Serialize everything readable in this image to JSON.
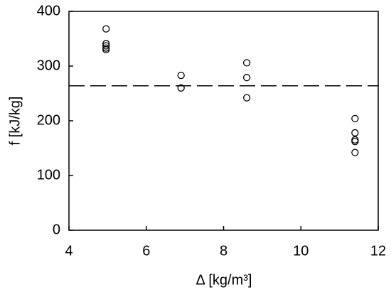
{
  "chart_data": {
    "type": "scatter",
    "xlabel": "Δ [kg/m³]",
    "ylabel": "f [kJ/kg]",
    "series": [
      {
        "color": "#000000",
        "x": [
          4.96,
          4.96,
          4.96,
          4.96,
          4.96,
          6.9,
          6.9,
          8.6,
          8.6,
          8.6,
          11.4,
          11.4,
          11.4,
          11.4,
          11.4
        ],
        "values": [
          368,
          341,
          337,
          333,
          330,
          283,
          260,
          306,
          279,
          242,
          204,
          178,
          165,
          162,
          142
        ]
      }
    ],
    "hline": 264,
    "xlim": [
      4,
      12
    ],
    "xticks": [
      4,
      6,
      8,
      10,
      12
    ],
    "ylim": [
      0,
      400
    ],
    "yticks": [
      0,
      100,
      200,
      300,
      400
    ]
  }
}
